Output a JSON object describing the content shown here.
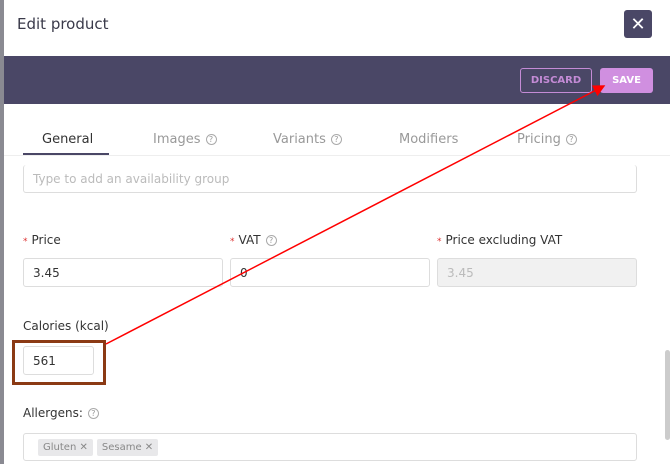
{
  "header": {
    "title": "Edit product",
    "close_icon": "close-icon"
  },
  "toolbar": {
    "discard_label": "DISCARD",
    "save_label": "SAVE"
  },
  "tabs": [
    {
      "label": "General",
      "active": true
    },
    {
      "label": "Images",
      "help": true
    },
    {
      "label": "Variants",
      "help": true
    },
    {
      "label": "Modifiers"
    },
    {
      "label": "Pricing",
      "help": true
    }
  ],
  "form": {
    "availability": {
      "placeholder": "Type to add an availability group"
    },
    "price": {
      "label": "Price",
      "value": "3.45",
      "required": true
    },
    "vat": {
      "label": "VAT",
      "value": "0",
      "required": true
    },
    "price_ex_vat": {
      "label": "Price excluding VAT",
      "value": "3.45",
      "required": true,
      "disabled": true
    },
    "calories": {
      "label": "Calories (kcal)",
      "value": "561"
    },
    "allergens": {
      "label": "Allergens:",
      "chips": [
        "Gluten",
        "Sesame"
      ]
    }
  },
  "colors": {
    "accent": "#4a4766",
    "save": "#d08fe0",
    "annotation": "#ff0000",
    "highlight_box": "#8b3a14"
  }
}
